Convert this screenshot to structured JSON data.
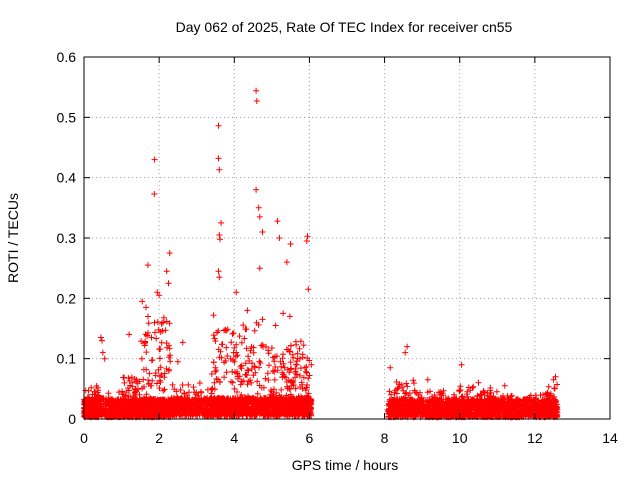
{
  "chart_data": {
    "type": "scatter",
    "title": "Day 062 of 2025, Rate Of TEC Index for receiver cn55",
    "xlabel": "GPS time / hours",
    "ylabel": "ROTI / TECUs",
    "xlim": [
      0,
      14
    ],
    "ylim": [
      0,
      0.6
    ],
    "x_ticks": [
      "0",
      "2",
      "4",
      "6",
      "8",
      "10",
      "12",
      "14"
    ],
    "y_ticks": [
      "0",
      "0.1",
      "0.2",
      "0.3",
      "0.4",
      "0.5",
      "0.6"
    ],
    "grid": true,
    "marker": "+",
    "marker_color": "#ff0000",
    "notable_points": [
      {
        "x": 1.88,
        "y": 0.43
      },
      {
        "x": 1.87,
        "y": 0.373
      },
      {
        "x": 3.58,
        "y": 0.486
      },
      {
        "x": 3.58,
        "y": 0.432
      },
      {
        "x": 3.6,
        "y": 0.413
      },
      {
        "x": 4.58,
        "y": 0.544
      },
      {
        "x": 4.6,
        "y": 0.527
      },
      {
        "x": 4.58,
        "y": 0.38
      },
      {
        "x": 4.65,
        "y": 0.35
      },
      {
        "x": 4.68,
        "y": 0.335
      },
      {
        "x": 3.65,
        "y": 0.325
      },
      {
        "x": 5.15,
        "y": 0.328
      },
      {
        "x": 3.6,
        "y": 0.305
      },
      {
        "x": 3.62,
        "y": 0.298
      },
      {
        "x": 5.95,
        "y": 0.303
      },
      {
        "x": 5.93,
        "y": 0.295
      },
      {
        "x": 5.5,
        "y": 0.29
      },
      {
        "x": 5.2,
        "y": 0.3
      },
      {
        "x": 2.28,
        "y": 0.275
      },
      {
        "x": 4.75,
        "y": 0.31
      },
      {
        "x": 1.7,
        "y": 0.255
      },
      {
        "x": 5.4,
        "y": 0.26
      },
      {
        "x": 4.68,
        "y": 0.25
      },
      {
        "x": 2.2,
        "y": 0.245
      },
      {
        "x": 3.58,
        "y": 0.245
      },
      {
        "x": 3.6,
        "y": 0.235
      },
      {
        "x": 2.25,
        "y": 0.225
      },
      {
        "x": 5.97,
        "y": 0.215
      },
      {
        "x": 1.95,
        "y": 0.21
      },
      {
        "x": 4.05,
        "y": 0.21
      },
      {
        "x": 2.0,
        "y": 0.205
      },
      {
        "x": 1.55,
        "y": 0.195
      },
      {
        "x": 1.65,
        "y": 0.185
      },
      {
        "x": 4.35,
        "y": 0.18
      },
      {
        "x": 5.3,
        "y": 0.175
      },
      {
        "x": 3.45,
        "y": 0.172
      },
      {
        "x": 5.48,
        "y": 0.17
      },
      {
        "x": 4.75,
        "y": 0.165
      },
      {
        "x": 2.1,
        "y": 0.16
      },
      {
        "x": 5.1,
        "y": 0.155
      },
      {
        "x": 0.45,
        "y": 0.135
      },
      {
        "x": 0.48,
        "y": 0.13
      },
      {
        "x": 2.63,
        "y": 0.127
      },
      {
        "x": 1.2,
        "y": 0.14
      },
      {
        "x": 0.5,
        "y": 0.11
      },
      {
        "x": 0.55,
        "y": 0.1
      },
      {
        "x": 2.5,
        "y": 0.095
      },
      {
        "x": 8.6,
        "y": 0.12
      },
      {
        "x": 8.55,
        "y": 0.11
      },
      {
        "x": 10.05,
        "y": 0.09
      },
      {
        "x": 8.15,
        "y": 0.085
      },
      {
        "x": 9.15,
        "y": 0.065
      },
      {
        "x": 12.55,
        "y": 0.07
      },
      {
        "x": 12.5,
        "y": 0.065
      },
      {
        "x": 10.5,
        "y": 0.06
      },
      {
        "x": 11.2,
        "y": 0.055
      }
    ],
    "clusters": [
      {
        "x_range": [
          0.0,
          0.4
        ],
        "y_min": 0.003,
        "y_max": 0.055,
        "density": 340
      },
      {
        "x_range": [
          0.4,
          0.6
        ],
        "y_min": 0.005,
        "y_max": 0.04,
        "density": 60
      },
      {
        "x_range": [
          0.6,
          1.0
        ],
        "y_min": 0.003,
        "y_max": 0.045,
        "density": 180
      },
      {
        "x_range": [
          1.0,
          1.5
        ],
        "y_min": 0.003,
        "y_max": 0.07,
        "density": 280
      },
      {
        "x_range": [
          1.5,
          2.3
        ],
        "y_min": 0.003,
        "y_max": 0.17,
        "density": 520
      },
      {
        "x_range": [
          2.3,
          3.4
        ],
        "y_min": 0.005,
        "y_max": 0.06,
        "density": 380
      },
      {
        "x_range": [
          3.4,
          4.0
        ],
        "y_min": 0.005,
        "y_max": 0.15,
        "density": 360
      },
      {
        "x_range": [
          4.0,
          4.8
        ],
        "y_min": 0.005,
        "y_max": 0.16,
        "density": 420
      },
      {
        "x_range": [
          4.8,
          5.5
        ],
        "y_min": 0.005,
        "y_max": 0.12,
        "density": 380
      },
      {
        "x_range": [
          5.5,
          6.05
        ],
        "y_min": 0.005,
        "y_max": 0.13,
        "density": 380
      },
      {
        "x_range": [
          8.1,
          8.8
        ],
        "y_min": 0.003,
        "y_max": 0.065,
        "density": 340
      },
      {
        "x_range": [
          8.8,
          10.0
        ],
        "y_min": 0.003,
        "y_max": 0.05,
        "density": 520
      },
      {
        "x_range": [
          10.0,
          11.0
        ],
        "y_min": 0.003,
        "y_max": 0.055,
        "density": 440
      },
      {
        "x_range": [
          11.0,
          12.2
        ],
        "y_min": 0.003,
        "y_max": 0.04,
        "density": 480
      },
      {
        "x_range": [
          12.2,
          12.6
        ],
        "y_min": 0.003,
        "y_max": 0.06,
        "density": 220
      }
    ]
  }
}
